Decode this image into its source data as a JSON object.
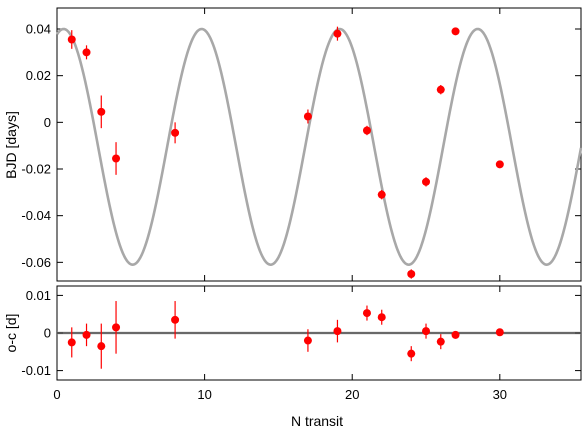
{
  "chart_data": [
    {
      "type": "scatter",
      "panel": "top",
      "xlabel": "",
      "ylabel": "BJD [days]",
      "xlim": [
        0,
        35.5
      ],
      "ylim": [
        -0.068,
        0.049
      ],
      "xticks": [
        0,
        10,
        20,
        30
      ],
      "yticks": [
        0.04,
        0.02,
        0,
        -0.02,
        -0.04,
        -0.06
      ],
      "ytick_labels": [
        "0.04",
        "0.02",
        "0",
        "-0.02",
        "-0.04",
        "-0.06"
      ],
      "grid": false,
      "series": [
        {
          "kind": "model-curve",
          "color": "#a8a8a8",
          "model": {
            "amplitude": 0.0505,
            "offset": -0.0105,
            "period": 9.35,
            "phase_x": 0.45
          }
        },
        {
          "kind": "points-with-errorbars",
          "color": "#ff0000",
          "points": [
            {
              "x": 1,
              "y": 0.0355,
              "err": 0.004
            },
            {
              "x": 2,
              "y": 0.03,
              "err": 0.003
            },
            {
              "x": 3,
              "y": 0.0045,
              "err": 0.007
            },
            {
              "x": 4,
              "y": -0.0155,
              "err": 0.007
            },
            {
              "x": 8,
              "y": -0.0045,
              "err": 0.0045
            },
            {
              "x": 17,
              "y": 0.0025,
              "err": 0.003
            },
            {
              "x": 19,
              "y": 0.038,
              "err": 0.003
            },
            {
              "x": 21,
              "y": -0.0035,
              "err": 0.002
            },
            {
              "x": 22,
              "y": -0.031,
              "err": 0.002
            },
            {
              "x": 24,
              "y": -0.065,
              "err": 0.002
            },
            {
              "x": 25,
              "y": -0.0255,
              "err": 0.002
            },
            {
              "x": 26,
              "y": 0.014,
              "err": 0.002
            },
            {
              "x": 27,
              "y": 0.039,
              "err": 0.0015
            },
            {
              "x": 30,
              "y": -0.018,
              "err": 0.001
            }
          ]
        }
      ]
    },
    {
      "type": "scatter",
      "panel": "bottom",
      "xlabel": "N transit",
      "ylabel": "o-c [d]",
      "xlim": [
        0,
        35.5
      ],
      "ylim": [
        -0.0125,
        0.0125
      ],
      "xticks": [
        0,
        10,
        20,
        30
      ],
      "xtick_labels": [
        "0",
        "10",
        "20",
        "30"
      ],
      "yticks": [
        0.01,
        0,
        -0.01
      ],
      "ytick_labels": [
        "0.01",
        "0",
        "-0.01"
      ],
      "grid": false,
      "zero_line_color": "#a8a8a8",
      "series": [
        {
          "kind": "points-with-errorbars",
          "color": "#ff0000",
          "points": [
            {
              "x": 1,
              "y": -0.0025,
              "err": 0.004
            },
            {
              "x": 2,
              "y": -0.0005,
              "err": 0.003
            },
            {
              "x": 3,
              "y": -0.0035,
              "err": 0.006
            },
            {
              "x": 4,
              "y": 0.0015,
              "err": 0.007
            },
            {
              "x": 8,
              "y": 0.0035,
              "err": 0.005
            },
            {
              "x": 17,
              "y": -0.002,
              "err": 0.003
            },
            {
              "x": 19,
              "y": 0.0005,
              "err": 0.003
            },
            {
              "x": 21,
              "y": 0.0053,
              "err": 0.002
            },
            {
              "x": 22,
              "y": 0.0042,
              "err": 0.002
            },
            {
              "x": 24,
              "y": -0.0055,
              "err": 0.002
            },
            {
              "x": 25,
              "y": 0.0005,
              "err": 0.002
            },
            {
              "x": 26,
              "y": -0.0023,
              "err": 0.002
            },
            {
              "x": 27,
              "y": -0.0005,
              "err": 0.001
            },
            {
              "x": 30,
              "y": 0.0002,
              "err": 0.001
            }
          ]
        }
      ]
    }
  ]
}
